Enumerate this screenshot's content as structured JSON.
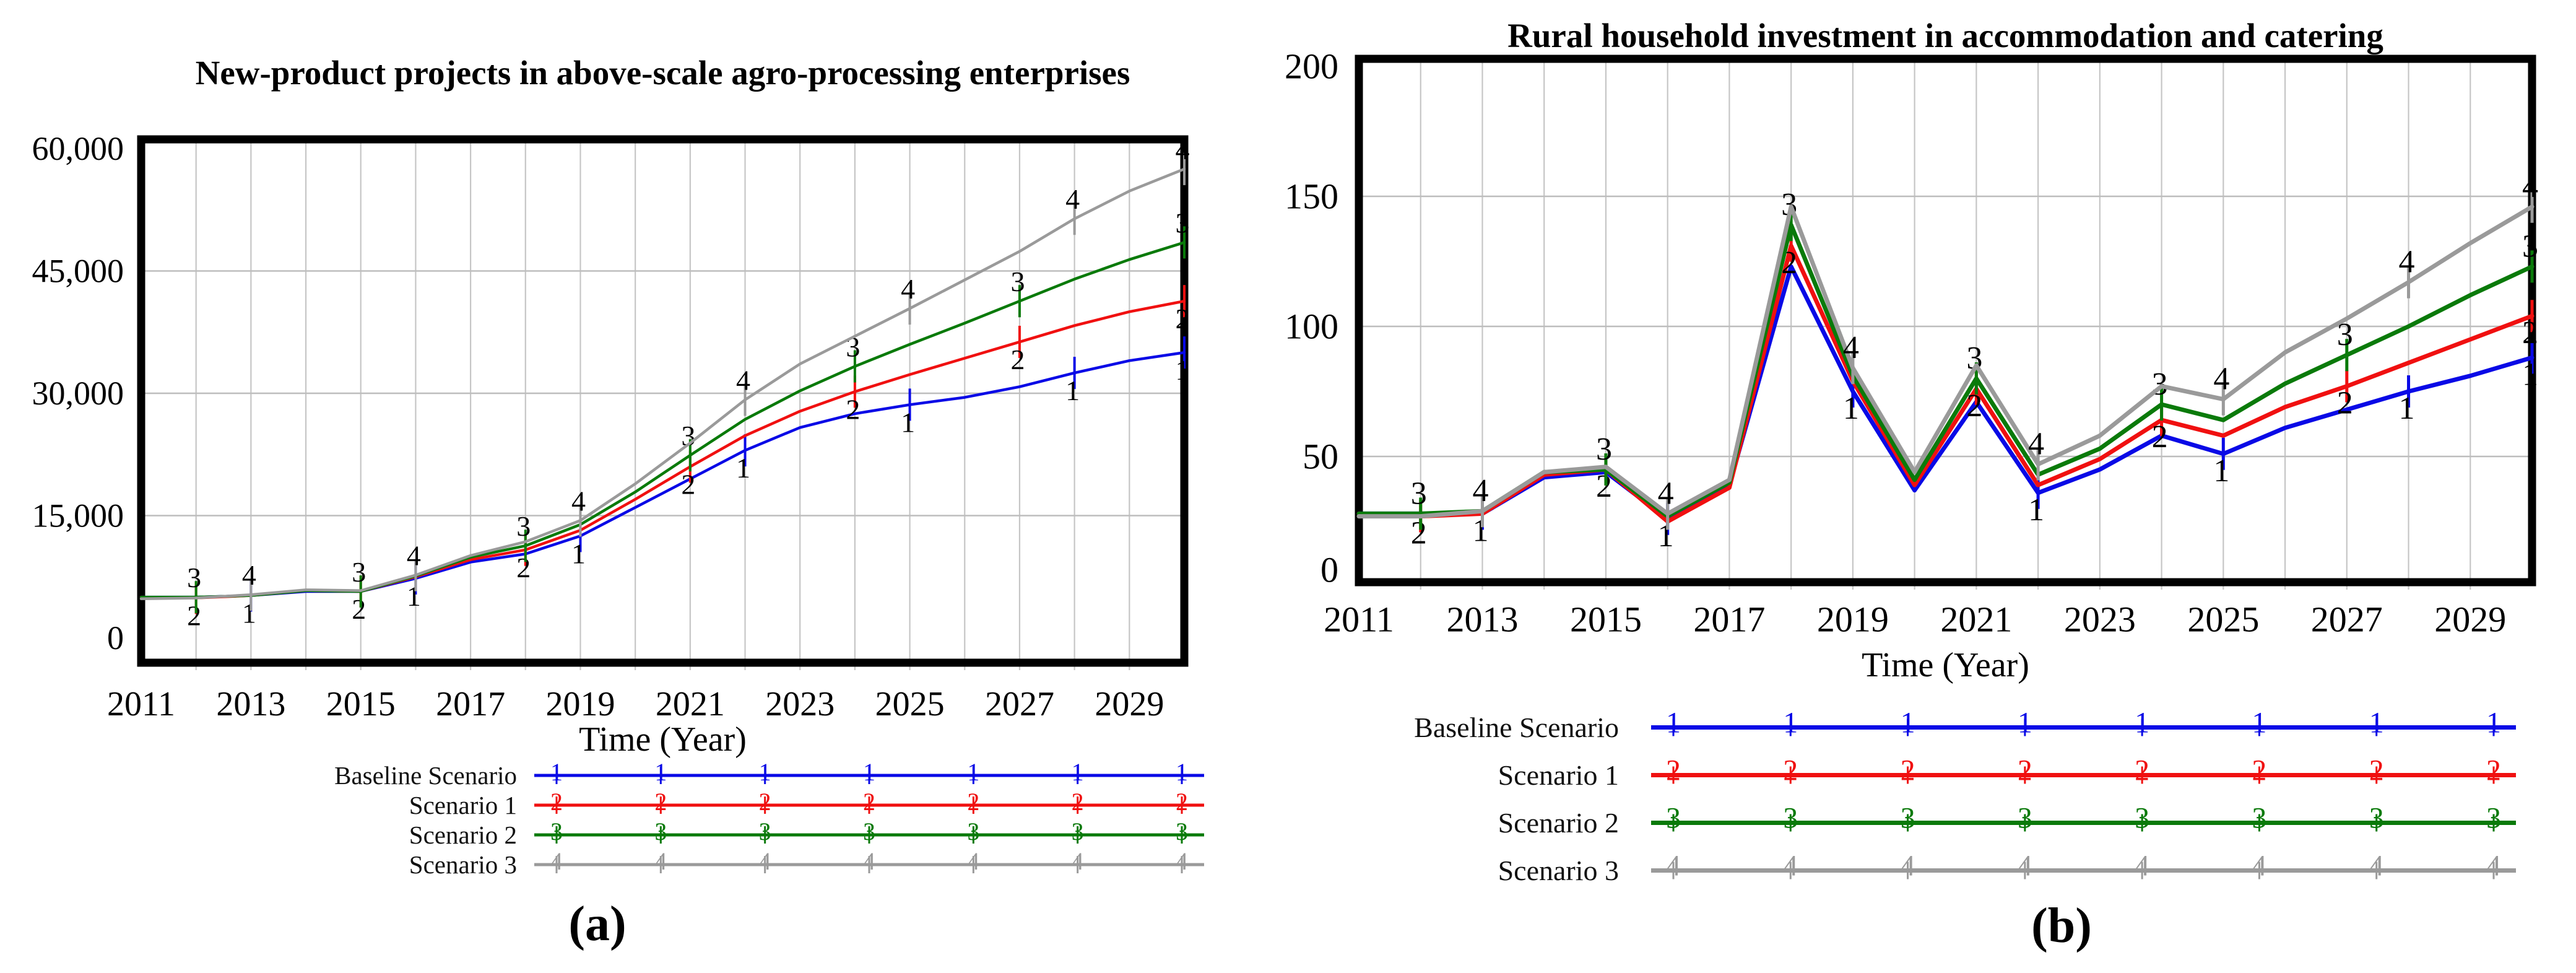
{
  "figure": {
    "panel_labels": [
      "(a)",
      "(b)"
    ],
    "background_color": "#ffffff",
    "grid_color": "#c6c6c6",
    "axis_color": "#000000"
  },
  "chart_data": [
    {
      "type": "line",
      "title": "New-product projects in above-scale agro-processing enterprises",
      "xlabel": "Time (Year)",
      "legend_position": "bottom",
      "grid": true,
      "x": [
        2011,
        2012,
        2013,
        2014,
        2015,
        2016,
        2017,
        2018,
        2019,
        2020,
        2021,
        2022,
        2023,
        2024,
        2025,
        2026,
        2027,
        2028,
        2029,
        2030
      ],
      "x_tick_labels": [
        "2011",
        "2013",
        "2015",
        "2017",
        "2019",
        "2021",
        "2023",
        "2025",
        "2027",
        "2029"
      ],
      "ylim": [
        0,
        60000
      ],
      "y_tick_values": [
        0,
        15000,
        30000,
        45000,
        60000
      ],
      "y_tick_labels": [
        "0",
        "15,000",
        "30,000",
        "45,000",
        "60,000"
      ],
      "series": [
        {
          "name": "Baseline Scenario",
          "marker": "1",
          "color": "#0909e6",
          "values": [
            5000,
            5000,
            5200,
            5700,
            5700,
            7300,
            9300,
            10300,
            12500,
            16000,
            19500,
            23000,
            25800,
            27500,
            28600,
            29500,
            30800,
            32500,
            34000,
            35000
          ]
        },
        {
          "name": "Scenario 1",
          "marker": "2",
          "color": "#f01010",
          "values": [
            5000,
            4900,
            5200,
            5800,
            5700,
            7500,
            9600,
            10800,
            13200,
            17000,
            21000,
            24800,
            27800,
            30200,
            32300,
            34300,
            36300,
            38300,
            40000,
            41300
          ]
        },
        {
          "name": "Scenario 2",
          "marker": "3",
          "color": "#0a7a0a",
          "values": [
            5000,
            5000,
            5200,
            5800,
            5700,
            7600,
            9900,
            11300,
            13900,
            17900,
            22400,
            26800,
            30300,
            33300,
            36000,
            38600,
            41300,
            44000,
            46400,
            48500
          ]
        },
        {
          "name": "Scenario 3",
          "marker": "4",
          "color": "#9a9a9a",
          "values": [
            4800,
            4900,
            5300,
            5900,
            5800,
            7700,
            10100,
            11800,
            14400,
            18900,
            23900,
            29200,
            33600,
            37000,
            40400,
            43900,
            47400,
            51400,
            54800,
            57500
          ]
        }
      ]
    },
    {
      "type": "line",
      "title": "Rural household investment in accommodation and catering",
      "xlabel": "Time (Year)",
      "legend_position": "bottom",
      "grid": true,
      "x": [
        2011,
        2012,
        2013,
        2014,
        2015,
        2016,
        2017,
        2018,
        2019,
        2020,
        2021,
        2022,
        2023,
        2024,
        2025,
        2026,
        2027,
        2028,
        2029,
        2030
      ],
      "x_tick_labels": [
        "2011",
        "2013",
        "2015",
        "2017",
        "2019",
        "2021",
        "2023",
        "2025",
        "2027",
        "2029"
      ],
      "ylim": [
        0,
        200
      ],
      "y_tick_values": [
        0,
        50,
        100,
        150,
        200
      ],
      "y_tick_labels": [
        "0",
        "50",
        "100",
        "150",
        "200"
      ],
      "series": [
        {
          "name": "Baseline Scenario",
          "marker": "1",
          "color": "#0909e6",
          "values": [
            28,
            28,
            28,
            42,
            44,
            26,
            39,
            123,
            75,
            37,
            71,
            36,
            45,
            58,
            51,
            61,
            68,
            75,
            81,
            88
          ]
        },
        {
          "name": "Scenario 1",
          "marker": "2",
          "color": "#f01010",
          "values": [
            28,
            27,
            28,
            43,
            45,
            25,
            38,
            131,
            79,
            39,
            76,
            39,
            49,
            64,
            58,
            69,
            77,
            86,
            95,
            104
          ]
        },
        {
          "name": "Scenario 2",
          "marker": "3",
          "color": "#0a7a0a",
          "values": [
            28,
            28,
            29,
            44,
            45,
            27,
            40,
            139,
            81,
            41,
            80,
            43,
            53,
            70,
            64,
            78,
            89,
            100,
            112,
            123
          ]
        },
        {
          "name": "Scenario 3",
          "marker": "4",
          "color": "#9a9a9a",
          "values": [
            27,
            27,
            29,
            44,
            46,
            28,
            41,
            146,
            84,
            44,
            85,
            47,
            58,
            77,
            72,
            90,
            103,
            117,
            132,
            146
          ]
        }
      ]
    }
  ]
}
